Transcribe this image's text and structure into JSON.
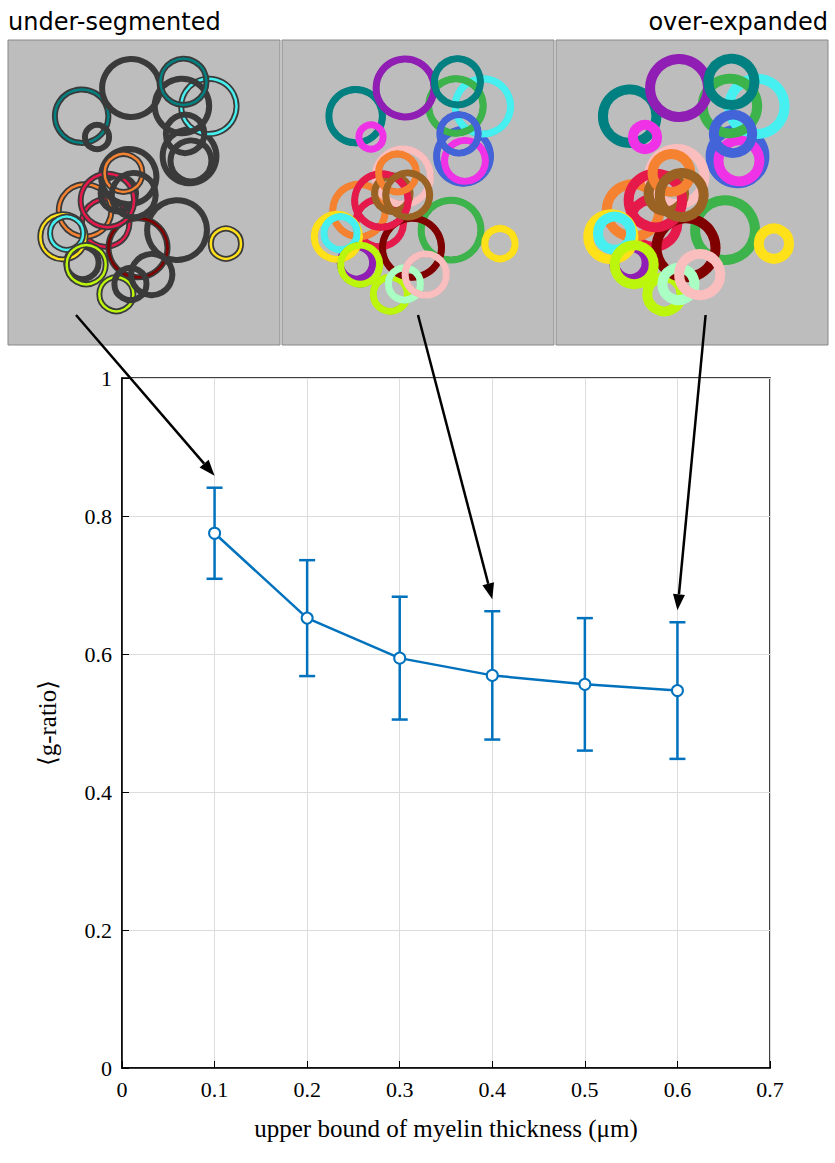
{
  "chart_data": {
    "type": "line",
    "x_label": "upper bound of myelin thickness (μm)",
    "y_label": "⟨g-ratio⟩",
    "x": [
      0.1,
      0.2,
      0.3,
      0.4,
      0.5,
      0.6
    ],
    "values": [
      0.775,
      0.652,
      0.594,
      0.569,
      0.556,
      0.547
    ],
    "errors": [
      0.066,
      0.084,
      0.089,
      0.093,
      0.096,
      0.099
    ],
    "color": "#0072bd",
    "marker": "circle",
    "xlim": [
      0,
      0.7
    ],
    "xticks": [
      0,
      0.1,
      0.2,
      0.3,
      0.4,
      0.5,
      0.6,
      0.7
    ],
    "ylim": [
      0,
      1
    ],
    "yticks": [
      0,
      0.2,
      0.4,
      0.6,
      0.8,
      1
    ],
    "grid": true,
    "panels": [
      {
        "label": "under-segmented",
        "points_to_x": 0.1
      },
      {
        "points_to_x": 0.4
      },
      {
        "label": "over-expanded",
        "points_to_x": 0.6
      }
    ]
  }
}
